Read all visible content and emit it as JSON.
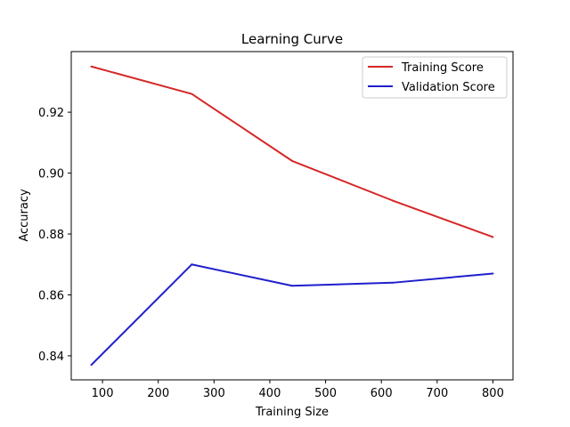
{
  "chart_data": {
    "type": "line",
    "title": "Learning Curve",
    "xlabel": "Training Size",
    "ylabel": "Accuracy",
    "x": [
      80,
      260,
      440,
      620,
      800
    ],
    "series": [
      {
        "name": "Training Score",
        "color": "#d62728",
        "values": [
          0.935,
          0.926,
          0.904,
          0.891,
          0.879
        ]
      },
      {
        "name": "Validation Score",
        "color": "#1f1fcc",
        "values": [
          0.837,
          0.87,
          0.863,
          0.864,
          0.867
        ]
      }
    ],
    "xlim": [
      44,
      836
    ],
    "ylim": [
      0.8321,
      0.9399
    ],
    "xticks": [
      100,
      200,
      300,
      400,
      500,
      600,
      700,
      800
    ],
    "yticks": [
      0.84,
      0.86,
      0.88,
      0.9,
      0.92
    ],
    "xtick_labels": [
      "100",
      "200",
      "300",
      "400",
      "500",
      "600",
      "700",
      "800"
    ],
    "ytick_labels": [
      "0.84",
      "0.86",
      "0.88",
      "0.90",
      "0.92"
    ],
    "legend_position": "top-right",
    "grid": false
  }
}
